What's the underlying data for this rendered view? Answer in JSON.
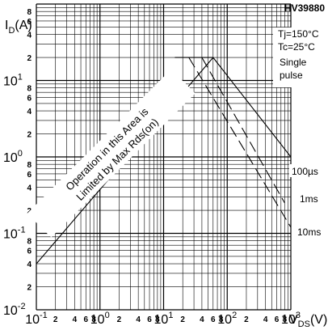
{
  "chart_data": {
    "type": "line",
    "title": "HV39880",
    "ylabel_main": "I",
    "ylabel_sub": "D",
    "ylabel_unit": "(A)",
    "xlabel_main": "V",
    "xlabel_sub": "DS",
    "xlabel_unit": "(V)",
    "x_scale": "log",
    "y_scale": "log",
    "xlim": [
      0.1,
      1000
    ],
    "ylim": [
      0.01,
      100
    ],
    "grid": true,
    "x_decades": [
      {
        "base": "10",
        "exp": "-1",
        "value": 0.1
      },
      {
        "base": "10",
        "exp": "0",
        "value": 1
      },
      {
        "base": "10",
        "exp": "1",
        "value": 10
      },
      {
        "base": "10",
        "exp": "2",
        "value": 100
      },
      {
        "base": "10",
        "exp": "3",
        "value": 1000
      }
    ],
    "y_decades": [
      {
        "base": "10",
        "exp": "-2",
        "value": 0.01
      },
      {
        "base": "10",
        "exp": "-1",
        "value": 0.1
      },
      {
        "base": "10",
        "exp": "0",
        "value": 1
      },
      {
        "base": "10",
        "exp": "1",
        "value": 10
      }
    ],
    "minor_tick_labels": [
      "2",
      "4",
      "6",
      "8"
    ],
    "conditions": [
      "Tj=150°C",
      "Tc=25°C",
      "Single",
      "pulse"
    ],
    "rdson_annotation": [
      "Operation in this Area is",
      "Limited by Max Rds(on)"
    ],
    "rdson_limit": {
      "x": [
        0.1,
        60
      ],
      "y": [
        0.04,
        20
      ]
    },
    "series": [
      {
        "name": "100µs",
        "style": "solid",
        "x": [
          60,
          1000
        ],
        "y": [
          20,
          1.0
        ]
      },
      {
        "name": "1ms",
        "style": "dashed",
        "x": [
          40,
          800
        ],
        "y": [
          20,
          0.25
        ]
      },
      {
        "name": "10ms",
        "style": "dashed",
        "x": [
          25,
          1000
        ],
        "y": [
          20,
          0.12
        ]
      }
    ],
    "rdson_segment_extra": {
      "x": [
        15,
        60
      ],
      "y": [
        20,
        20
      ]
    }
  }
}
